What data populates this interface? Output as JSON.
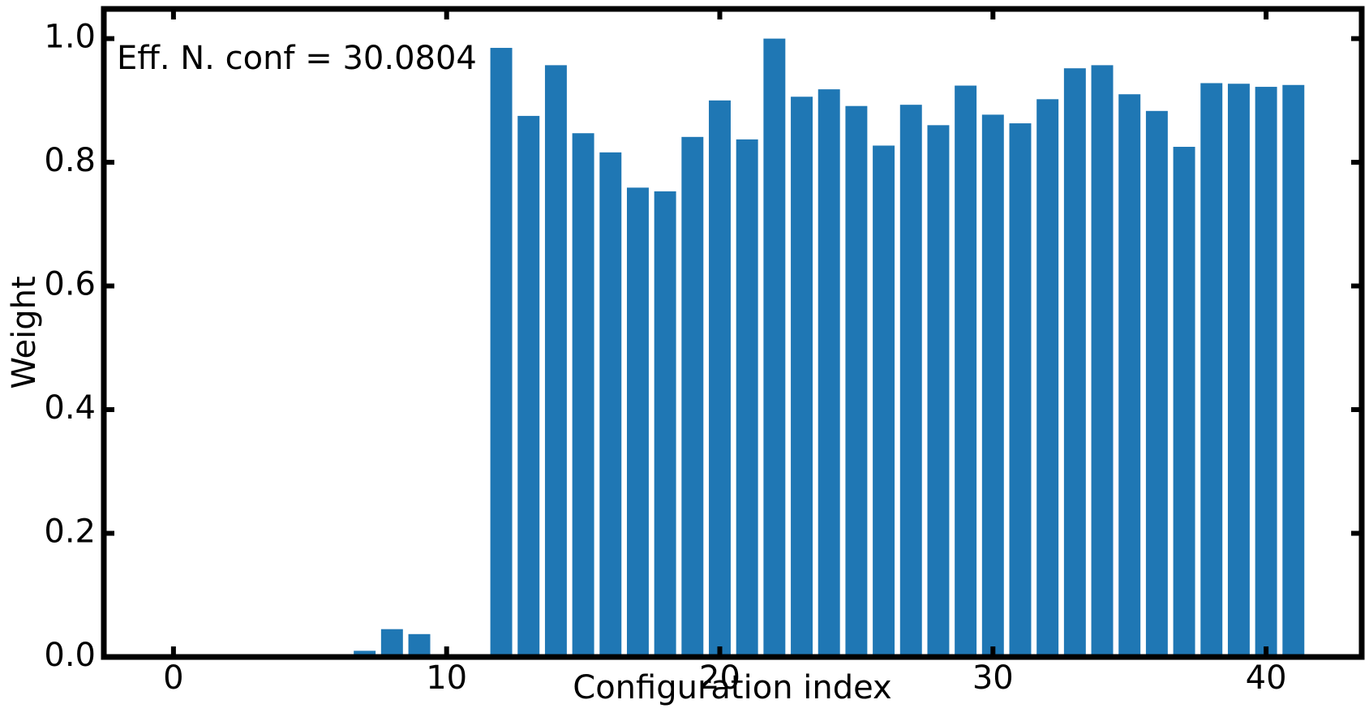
{
  "chart_data": {
    "type": "bar",
    "x_label": "Configuration index",
    "y_label": "Weight",
    "annotation": "Eff. N. conf = 30.0804",
    "x": [
      0,
      1,
      2,
      3,
      4,
      5,
      6,
      7,
      8,
      9,
      10,
      11,
      12,
      13,
      14,
      15,
      16,
      17,
      18,
      19,
      20,
      21,
      22,
      23,
      24,
      25,
      26,
      27,
      28,
      29,
      30,
      31,
      32,
      33,
      34,
      35,
      36,
      37,
      38,
      39,
      40,
      41
    ],
    "values": [
      0,
      0,
      0,
      0,
      0,
      0,
      0,
      0.01,
      0.045,
      0.037,
      0,
      0,
      0.985,
      0.875,
      0.957,
      0.847,
      0.816,
      0.759,
      0.753,
      0.841,
      0.9,
      0.837,
      1.0,
      0.906,
      0.918,
      0.891,
      0.827,
      0.893,
      0.86,
      0.924,
      0.877,
      0.863,
      0.902,
      0.952,
      0.957,
      0.91,
      0.883,
      0.825,
      0.928,
      0.927,
      0.922,
      0.925
    ],
    "color": "#1f77b4",
    "xlim": [
      -2.55,
      43.5
    ],
    "ylim": [
      0,
      1.048
    ],
    "xticks": [
      0,
      10,
      20,
      30,
      40
    ],
    "yticks": [
      {
        "value": 0,
        "label": "0.0"
      },
      {
        "value": 0.2,
        "label": "0.2"
      },
      {
        "value": 0.4,
        "label": "0.4"
      },
      {
        "value": 0.6,
        "label": "0.6"
      },
      {
        "value": 0.8,
        "label": "0.8"
      },
      {
        "value": 1.0,
        "label": "1.0"
      }
    ]
  }
}
